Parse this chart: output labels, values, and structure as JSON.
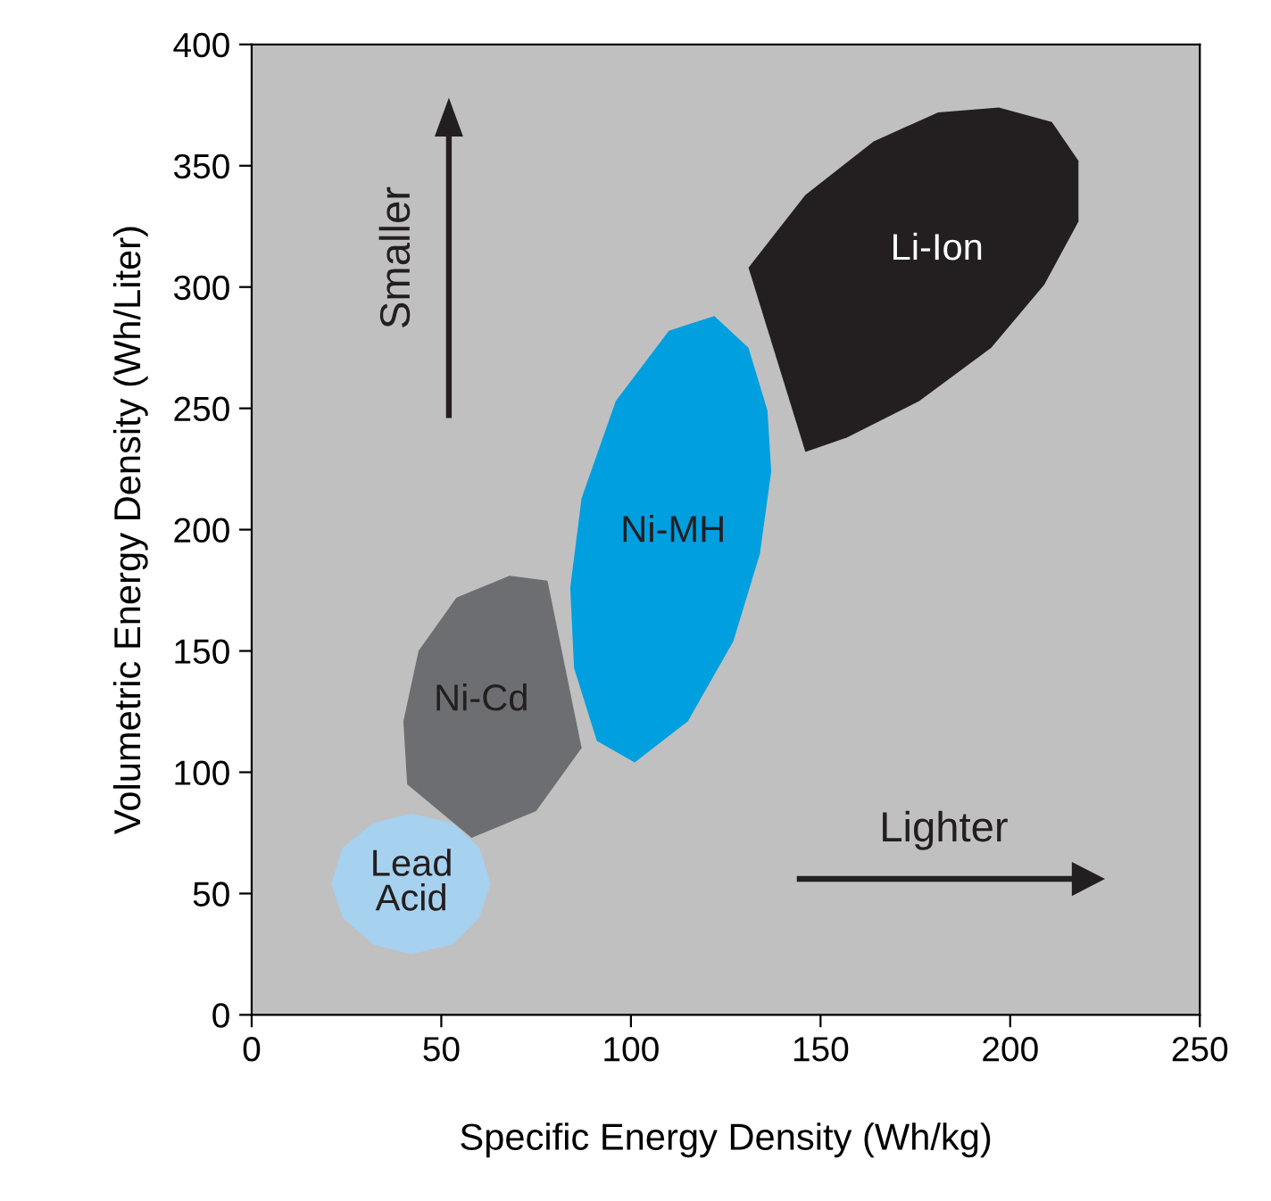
{
  "chart_data": {
    "type": "area",
    "xlabel": "Specific Energy Density (Wh/kg)",
    "ylabel": "Volumetric Energy Density (Wh/Liter)",
    "xlim": [
      0,
      250
    ],
    "ylim": [
      0,
      400
    ],
    "xticks": [
      0,
      50,
      100,
      150,
      200,
      250
    ],
    "yticks": [
      0,
      50,
      100,
      150,
      200,
      250,
      300,
      350,
      400
    ],
    "grid": false,
    "legend": false,
    "annotations": [
      "Smaller",
      "Lighter"
    ],
    "series": [
      {
        "name": "Li-Ion",
        "color": "#231f20",
        "x": [
          197,
          211,
          218,
          218,
          209,
          195,
          176,
          157,
          146,
          131,
          146,
          164,
          181
        ],
        "values": [
          374,
          368,
          352,
          327,
          301,
          275,
          253,
          238,
          232,
          308,
          338,
          360,
          372
        ]
      },
      {
        "name": "Ni-Cd",
        "color": "#6d6e71",
        "x": [
          68,
          78,
          87,
          75,
          58,
          41,
          40,
          44,
          54
        ],
        "values": [
          181,
          179,
          110,
          84,
          73,
          95,
          121,
          150,
          172
        ]
      },
      {
        "name": "Ni-MH",
        "color": "#009fdf",
        "x": [
          122,
          131,
          136,
          137,
          134,
          127,
          115,
          101,
          91,
          85,
          84,
          87,
          96,
          110
        ],
        "values": [
          288,
          275,
          249,
          224,
          190,
          154,
          121,
          104,
          113,
          143,
          176,
          213,
          253,
          282
        ]
      },
      {
        "name": "Lead\nAcid",
        "color": "#a6d1ef",
        "x": [
          63,
          60,
          53,
          42,
          32,
          24,
          21,
          24,
          32,
          42,
          53,
          60
        ],
        "values": [
          54,
          69,
          79,
          83,
          79,
          69,
          54,
          40,
          29,
          25,
          29,
          40
        ]
      }
    ]
  }
}
